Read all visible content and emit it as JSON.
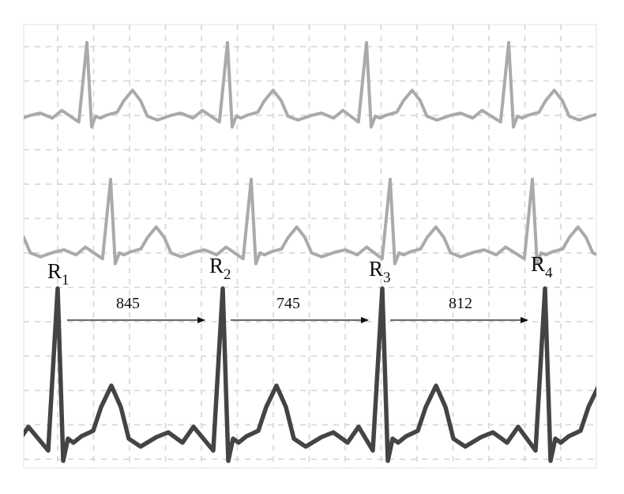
{
  "colors": {
    "grid": "#d4d4d4",
    "border": "#e0e0e0",
    "trace_light": "#aaaaaa",
    "trace_dark": "#444444",
    "arrow": "#111111"
  },
  "peaks": [
    {
      "letter": "R",
      "sub": "1"
    },
    {
      "letter": "R",
      "sub": "2"
    },
    {
      "letter": "R",
      "sub": "3"
    },
    {
      "letter": "R",
      "sub": "4"
    }
  ],
  "intervals": [
    "845",
    "745",
    "812"
  ]
}
